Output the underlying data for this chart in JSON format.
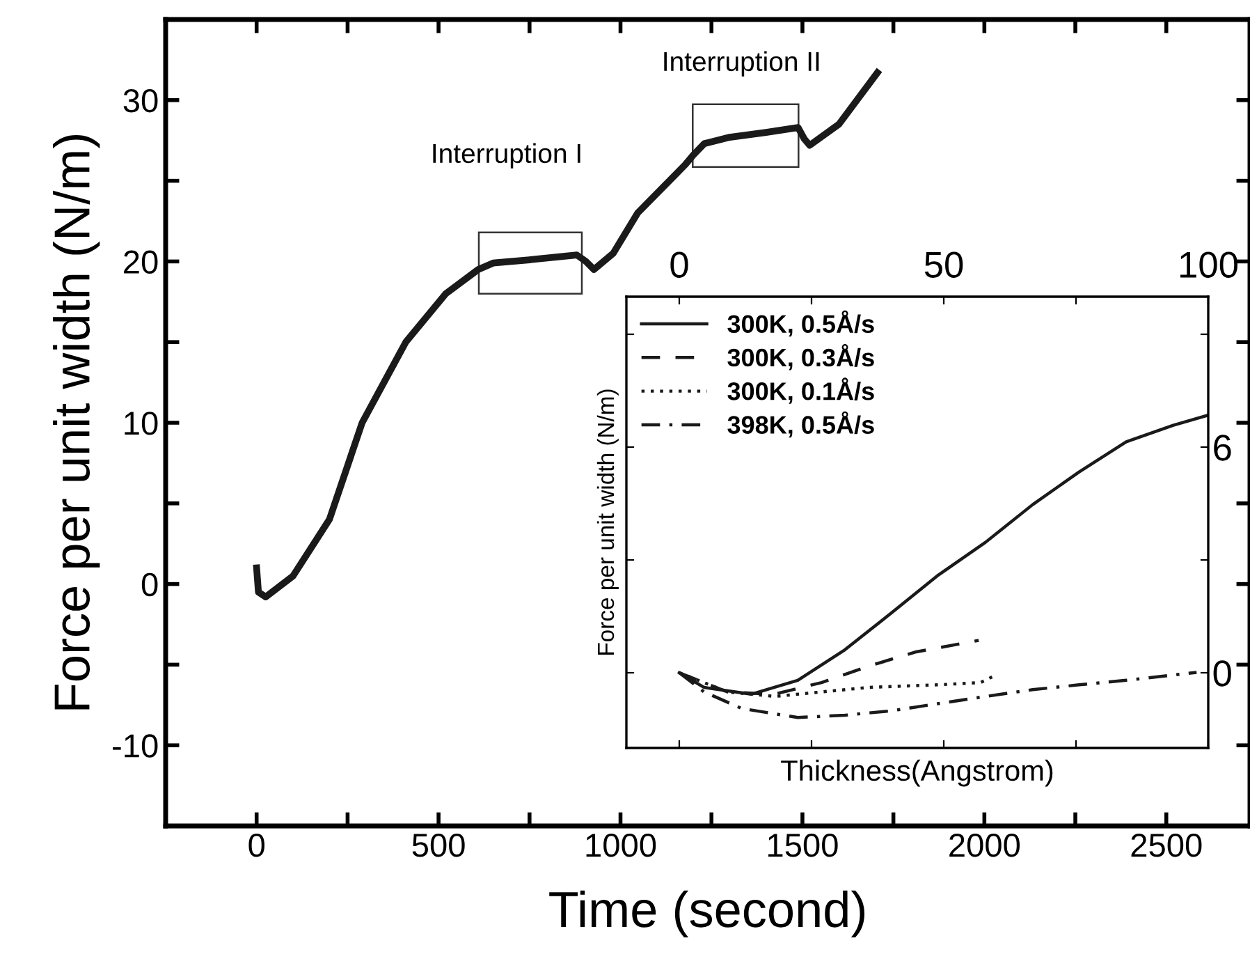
{
  "chart_data": [
    {
      "type": "line",
      "xlabel": "Time (second)",
      "ylabel": "Force per unit width (N/m)",
      "xlim": [
        -250,
        2730
      ],
      "ylim": [
        -15,
        35
      ],
      "xticks": [
        0,
        {
          "value": 250,
          "label": null
        },
        500,
        {
          "value": 750,
          "label": null
        },
        1000,
        {
          "value": 1250,
          "label": null
        },
        1500,
        {
          "value": 1750,
          "label": null
        },
        2000,
        {
          "value": 2250,
          "label": null
        },
        2500
      ],
      "yticks": [
        {
          "value": -15,
          "label": null
        },
        -10,
        {
          "value": -5,
          "label": null
        },
        0,
        {
          "value": 5,
          "label": null
        },
        10,
        {
          "value": 15,
          "label": null
        },
        20,
        {
          "value": 25,
          "label": null
        },
        30
      ],
      "series": [
        {
          "color": "#1a1a1a",
          "x": [
            0,
            5,
            25,
            100,
            200,
            290,
            410,
            520,
            609,
            650,
            750,
            880,
            905,
            927,
            980,
            1047,
            1178,
            1200,
            1230,
            1300,
            1400,
            1488,
            1505,
            1520,
            1600,
            1706
          ],
          "values": [
            1,
            -0.5,
            -0.8,
            0.5,
            4,
            10,
            15,
            18,
            19.5,
            19.9,
            20.1,
            20.4,
            20.0,
            19.5,
            20.5,
            23,
            26,
            26.6,
            27.3,
            27.7,
            28,
            28.3,
            27.6,
            27.2,
            28.5,
            31.7
          ]
        }
      ],
      "annotations": [
        "Interruption I",
        "Interruption II"
      ],
      "grid": false,
      "legend": false
    },
    {
      "type": "line",
      "xlabel": "Thickness(Angstrom)",
      "ylabel": "Force per unit width (N/m)",
      "xlim": [
        -10,
        100
      ],
      "ylim": [
        -2,
        10
      ],
      "xticks": [
        0,
        {
          "value": 25,
          "label": null
        },
        50,
        {
          "value": 75,
          "label": null
        },
        100
      ],
      "yticks": [
        0,
        {
          "value": 3,
          "label": null
        },
        6,
        {
          "value": 9,
          "label": null
        }
      ],
      "series": [
        {
          "name": "300K, 0.5Å/s",
          "color": "#1a1a1a",
          "line_style": "solid",
          "x": [
            0,
            4.7,
            13.6,
            22.4,
            31.3,
            40.2,
            49,
            57.9,
            66.8,
            75.6,
            84.5,
            93.4,
            100
          ],
          "values": [
            0,
            -0.39,
            -0.57,
            -0.2,
            0.61,
            1.6,
            2.6,
            3.47,
            4.47,
            5.34,
            6.14,
            6.58,
            6.85
          ]
        },
        {
          "name": "300K, 0.3Å/s",
          "color": "#1a1a1a",
          "line_style": "dashed",
          "x": [
            0,
            9.1,
            18,
            26.9,
            35.7,
            44.6,
            56.6
          ],
          "values": [
            0,
            -0.51,
            -0.57,
            -0.26,
            0.17,
            0.55,
            0.86
          ]
        },
        {
          "name": "300K, 0.1Å/s",
          "color": "#1a1a1a",
          "line_style": "dotted",
          "x": [
            0,
            9.1,
            18,
            26.9,
            35.7,
            49,
            57,
            59.7
          ],
          "values": [
            0,
            -0.51,
            -0.63,
            -0.51,
            -0.39,
            -0.32,
            -0.26,
            -0.07
          ]
        },
        {
          "name": "398K, 0.5Å/s",
          "color": "#1a1a1a",
          "line_style": "dashdot",
          "x": [
            0,
            4.7,
            11.8,
            22.4,
            31.3,
            40.2,
            49,
            57.9,
            66.8,
            75.6,
            84.5,
            97.8
          ],
          "values": [
            0,
            -0.51,
            -0.95,
            -1.19,
            -1.13,
            -1.01,
            -0.82,
            -0.63,
            -0.45,
            -0.32,
            -0.2,
            0.01
          ]
        }
      ],
      "grid": false,
      "legend": "top left"
    }
  ]
}
